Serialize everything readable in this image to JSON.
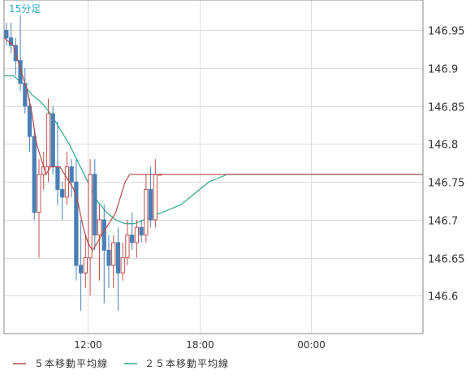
{
  "interval_label": "15分足",
  "legend": [
    {
      "label": "５本移動平均線",
      "color": "#b84a4a"
    },
    {
      "label": "２５本移動平均線",
      "color": "#2fa98a"
    }
  ],
  "colors": {
    "up": "#c0504d",
    "down": "#4a7fb5",
    "ma5": "#b84a4a",
    "ma25": "#2fa98a",
    "grid": "#dddddd",
    "axis": "#888888"
  },
  "chart_data": {
    "type": "candlestick",
    "ylim": [
      146.55,
      146.99
    ],
    "y_ticks": [
      "146.95",
      "146.9",
      "146.85",
      "146.8",
      "146.75",
      "146.7",
      "146.65",
      "146.6"
    ],
    "y_tick_values": [
      146.95,
      146.9,
      146.85,
      146.8,
      146.75,
      146.7,
      146.65,
      146.6
    ],
    "x_ticks": [
      {
        "label": "12:00",
        "x": 12
      },
      {
        "label": "18:00",
        "x": 18
      },
      {
        "label": "00:00",
        "x": 24
      }
    ],
    "x_range": [
      7.5,
      30.0
    ],
    "bar_hours": 0.25,
    "candles": [
      [
        146.95,
        146.96,
        146.93,
        146.94
      ],
      [
        146.94,
        146.96,
        146.92,
        146.93
      ],
      [
        146.93,
        146.94,
        146.89,
        146.91
      ],
      [
        146.91,
        146.97,
        146.87,
        146.88
      ],
      [
        146.88,
        146.9,
        146.84,
        146.85
      ],
      [
        146.85,
        146.86,
        146.79,
        146.81
      ],
      [
        146.81,
        146.82,
        146.7,
        146.71
      ],
      [
        146.71,
        146.78,
        146.65,
        146.76
      ],
      [
        146.76,
        146.79,
        146.74,
        146.77
      ],
      [
        146.77,
        146.86,
        146.75,
        146.84
      ],
      [
        146.84,
        146.85,
        146.76,
        146.77
      ],
      [
        146.77,
        146.83,
        146.72,
        146.74
      ],
      [
        146.74,
        146.75,
        146.7,
        146.73
      ],
      [
        146.73,
        146.79,
        146.72,
        146.77
      ],
      [
        146.77,
        146.78,
        146.73,
        146.75
      ],
      [
        146.75,
        146.78,
        146.62,
        146.64
      ],
      [
        146.64,
        146.7,
        146.58,
        146.63
      ],
      [
        146.63,
        146.68,
        146.61,
        146.65
      ],
      [
        146.65,
        146.78,
        146.6,
        146.76
      ],
      [
        146.76,
        146.78,
        146.66,
        146.68
      ],
      [
        146.68,
        146.72,
        146.62,
        146.7
      ],
      [
        146.7,
        146.72,
        146.59,
        146.66
      ],
      [
        146.66,
        146.68,
        146.61,
        146.64
      ],
      [
        146.64,
        146.68,
        146.61,
        146.67
      ],
      [
        146.67,
        146.69,
        146.58,
        146.63
      ],
      [
        146.63,
        146.67,
        146.62,
        146.65
      ],
      [
        146.65,
        146.7,
        146.64,
        146.68
      ],
      [
        146.68,
        146.71,
        146.66,
        146.67
      ],
      [
        146.67,
        146.7,
        146.65,
        146.69
      ],
      [
        146.69,
        146.7,
        146.67,
        146.68
      ],
      [
        146.68,
        146.76,
        146.67,
        146.74
      ],
      [
        146.74,
        146.77,
        146.69,
        146.7
      ],
      [
        146.7,
        146.78,
        146.69,
        146.76
      ],
      [
        146.76,
        146.76,
        146.76,
        146.76
      ]
    ],
    "ma5": [
      [
        7.5,
        146.94
      ],
      [
        8.0,
        146.93
      ],
      [
        8.25,
        146.91
      ],
      [
        8.5,
        146.89
      ],
      [
        8.75,
        146.87
      ],
      [
        9.0,
        146.84
      ],
      [
        9.25,
        146.8
      ],
      [
        9.5,
        146.78
      ],
      [
        9.75,
        146.76
      ],
      [
        10.0,
        146.77
      ],
      [
        10.5,
        146.77
      ],
      [
        10.75,
        146.76
      ],
      [
        11.0,
        146.75
      ],
      [
        11.25,
        146.74
      ],
      [
        11.5,
        146.72
      ],
      [
        11.75,
        146.69
      ],
      [
        12.0,
        146.67
      ],
      [
        12.25,
        146.66
      ],
      [
        12.5,
        146.67
      ],
      [
        12.75,
        146.68
      ],
      [
        13.0,
        146.69
      ],
      [
        13.25,
        146.7
      ],
      [
        13.5,
        146.71
      ],
      [
        13.75,
        146.73
      ],
      [
        14.0,
        146.75
      ],
      [
        14.25,
        146.76
      ],
      [
        15.0,
        146.76
      ],
      [
        30.0,
        146.76
      ]
    ],
    "ma25": [
      [
        7.5,
        146.89
      ],
      [
        8.0,
        146.89
      ],
      [
        8.5,
        146.88
      ],
      [
        9.0,
        146.865
      ],
      [
        9.5,
        146.855
      ],
      [
        10.0,
        146.84
      ],
      [
        10.5,
        146.82
      ],
      [
        11.0,
        146.8
      ],
      [
        11.5,
        146.775
      ],
      [
        12.0,
        146.75
      ],
      [
        12.5,
        146.725
      ],
      [
        13.0,
        146.71
      ],
      [
        13.5,
        146.7
      ],
      [
        14.0,
        146.695
      ],
      [
        14.5,
        146.695
      ],
      [
        15.0,
        146.7
      ],
      [
        15.5,
        146.705
      ],
      [
        16.0,
        146.71
      ],
      [
        16.5,
        146.715
      ],
      [
        17.0,
        146.72
      ],
      [
        17.5,
        146.73
      ],
      [
        18.0,
        146.74
      ],
      [
        18.5,
        146.75
      ],
      [
        19.0,
        146.755
      ],
      [
        19.5,
        146.76
      ],
      [
        20.0,
        146.76
      ],
      [
        30.0,
        146.76
      ]
    ]
  }
}
